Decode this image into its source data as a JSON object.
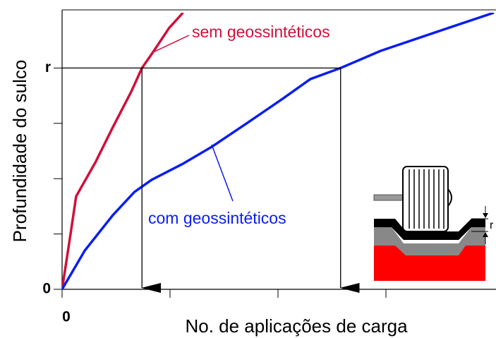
{
  "chart_data": {
    "type": "line",
    "y_label": "Profundidade do sulco",
    "x_label": "No. de aplicações de carga",
    "xlim": [
      0,
      4
    ],
    "ylim": [
      0,
      5
    ],
    "xticks": [
      0
    ],
    "yticks": [
      0,
      {
        "value": 4,
        "label": "r"
      }
    ],
    "x_minor_ticks": [
      1,
      2,
      3
    ],
    "y_minor_ticks": [
      1,
      2,
      3
    ],
    "series": [
      {
        "name": "sem geossintéticos",
        "color": "#d0103a",
        "x": [
          0,
          0.08,
          0.13,
          0.31,
          0.47,
          0.64,
          0.74,
          0.85,
          0.99,
          1.12
        ],
        "values": [
          0,
          1.02,
          1.68,
          2.3,
          2.93,
          3.57,
          4.0,
          4.31,
          4.72,
          5.0
        ]
      },
      {
        "name": "com geossintéticos",
        "color": "#0a1ef0",
        "x": [
          0,
          0.21,
          0.47,
          0.67,
          0.83,
          1.12,
          1.39,
          1.71,
          2.04,
          2.3,
          2.58,
          2.95,
          3.48,
          4.0
        ],
        "values": [
          0,
          0.7,
          1.34,
          1.76,
          1.98,
          2.27,
          2.58,
          3.0,
          3.44,
          3.8,
          4.0,
          4.31,
          4.66,
          5.0
        ]
      }
    ],
    "inset_label": "r"
  }
}
